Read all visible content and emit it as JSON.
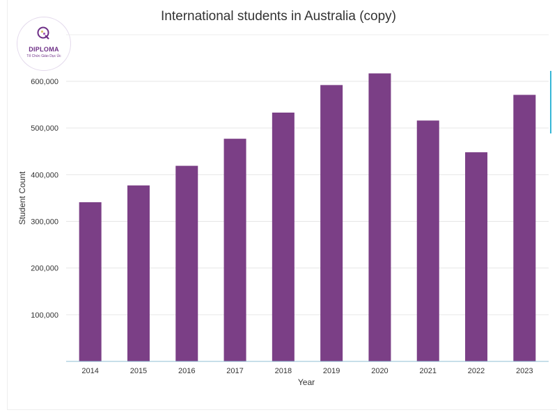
{
  "logo": {
    "text": "DIPLOMA",
    "subtext": "Tổ Chức Giáo Dục Úc",
    "color": "#6d2e86"
  },
  "chart_data": {
    "type": "bar",
    "title": "International students in Australia (copy)",
    "xlabel": "Year",
    "ylabel": "Student Count",
    "categories": [
      "2014",
      "2015",
      "2016",
      "2017",
      "2018",
      "2019",
      "2020",
      "2021",
      "2022",
      "2023"
    ],
    "values": [
      341000,
      377000,
      419000,
      477000,
      533000,
      592000,
      617000,
      516000,
      448000,
      571000
    ],
    "ylim": [
      0,
      600000
    ],
    "yticks": [
      "100,000",
      "200,000",
      "300,000",
      "400,000",
      "500,000",
      "600,000"
    ],
    "ytick_values": [
      100000,
      200000,
      300000,
      400000,
      500000,
      600000
    ],
    "bar_color": "#7b3f86",
    "axis_color": "#8fbfd3",
    "grid": true
  }
}
